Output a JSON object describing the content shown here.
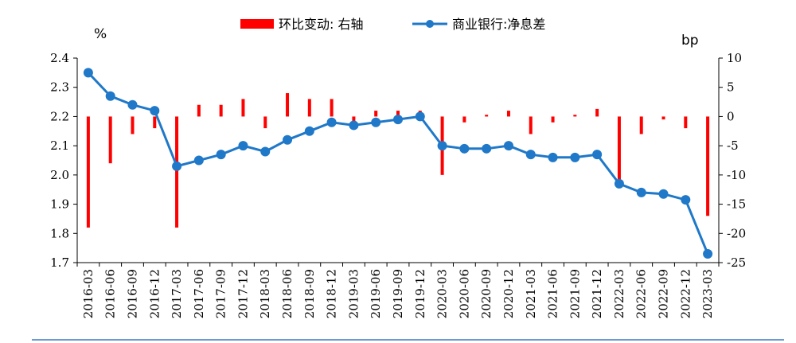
{
  "chart_data": {
    "type": "bar+line",
    "legend": {
      "bar_label": "环比变动: 右轴",
      "line_label": "商业银行:净息差",
      "placement": "top-center"
    },
    "left_axis": {
      "unit": "%",
      "min": 1.7,
      "max": 2.4,
      "ticks": [
        "2.4",
        "2.3",
        "2.2",
        "2.1",
        "2.0",
        "1.9",
        "1.8",
        "1.7"
      ],
      "tick_values": [
        2.4,
        2.3,
        2.2,
        2.1,
        2.0,
        1.9,
        1.8,
        1.7
      ]
    },
    "right_axis": {
      "unit": "bp",
      "min": -25,
      "max": 10,
      "ticks": [
        "10",
        "5",
        "0",
        "-5",
        "-10",
        "-15",
        "-20",
        "-25"
      ],
      "tick_values": [
        10,
        5,
        0,
        -5,
        -10,
        -15,
        -20,
        -25
      ]
    },
    "categories": [
      "2016-03",
      "2016-06",
      "2016-09",
      "2016-12",
      "2017-03",
      "2017-06",
      "2017-09",
      "2017-12",
      "2018-03",
      "2018-06",
      "2018-09",
      "2018-12",
      "2019-03",
      "2019-06",
      "2019-09",
      "2019-12",
      "2020-03",
      "2020-06",
      "2020-09",
      "2020-12",
      "2021-03",
      "2021-06",
      "2021-09",
      "2021-12",
      "2022-03",
      "2022-06",
      "2022-09",
      "2022-12",
      "2023-03"
    ],
    "series": [
      {
        "name": "环比变动: 右轴",
        "kind": "bar",
        "axis": "right",
        "color": "#ff0000",
        "values": [
          -19,
          -8,
          -3,
          -2,
          -19,
          2,
          2,
          3,
          -2,
          4,
          3,
          3,
          -1,
          1,
          1,
          1,
          -10,
          -1,
          0.3,
          1,
          -3,
          -1,
          0.3,
          1.3,
          -11,
          -3,
          -0.5,
          -2,
          -17
        ]
      },
      {
        "name": "商业银行:净息差",
        "kind": "line",
        "axis": "left",
        "color": "#1f78c8",
        "values": [
          2.35,
          2.27,
          2.24,
          2.22,
          2.03,
          2.05,
          2.07,
          2.1,
          2.08,
          2.12,
          2.15,
          2.18,
          2.17,
          2.18,
          2.19,
          2.2,
          2.1,
          2.09,
          2.09,
          2.1,
          2.07,
          2.06,
          2.06,
          2.07,
          1.97,
          1.94,
          1.935,
          1.915,
          1.73
        ]
      }
    ],
    "grid": false
  }
}
